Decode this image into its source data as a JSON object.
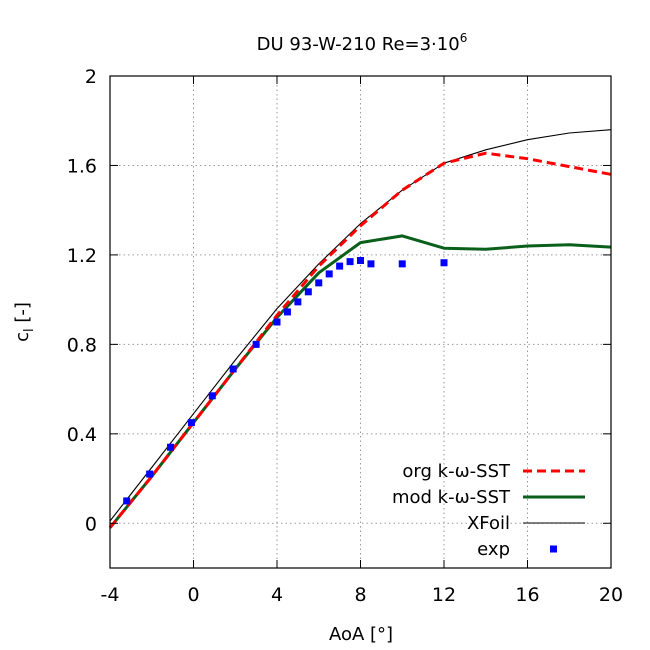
{
  "chart_data": {
    "type": "line",
    "title": "DU 93-W-210    Re=3·10",
    "title_superscript": "6",
    "xlabel": "AoA [°]",
    "ylabel_main": "c",
    "ylabel_sub": "l",
    "ylabel_suffix": " [-]",
    "xlim": [
      -4,
      20
    ],
    "ylim": [
      -0.2,
      2.0
    ],
    "xticks": [
      -4,
      0,
      4,
      8,
      12,
      16,
      20
    ],
    "yticks": [
      0,
      0.4,
      0.8,
      1.2,
      1.6,
      2
    ],
    "xtick_labels": [
      "-4",
      "0",
      "4",
      "8",
      "12",
      "16",
      "20"
    ],
    "ytick_labels": [
      "0",
      "0.4",
      "0.8",
      "1.2",
      "1.6",
      "2"
    ],
    "grid": true,
    "legend_position": "bottom-right",
    "series": [
      {
        "name": "org k-ω-SST",
        "style": "dashed",
        "color": "#ff0000",
        "x": [
          -4,
          -2,
          0,
          2,
          4,
          6,
          8,
          10,
          12,
          14,
          16,
          18,
          20
        ],
        "y": [
          -0.02,
          0.21,
          0.45,
          0.69,
          0.93,
          1.15,
          1.33,
          1.49,
          1.61,
          1.655,
          1.63,
          1.595,
          1.56
        ]
      },
      {
        "name": "mod k-ω-SST",
        "style": "solid-thick",
        "color": "#0a5f1a",
        "x": [
          -4,
          -2,
          0,
          2,
          4,
          6,
          8,
          10,
          12,
          14,
          16,
          18,
          20
        ],
        "y": [
          -0.02,
          0.21,
          0.45,
          0.69,
          0.92,
          1.12,
          1.255,
          1.285,
          1.23,
          1.225,
          1.24,
          1.245,
          1.235
        ]
      },
      {
        "name": "XFoil",
        "style": "solid-thin",
        "color": "#000000",
        "x": [
          -4,
          -2,
          0,
          2,
          4,
          6,
          8,
          10,
          12,
          14,
          16,
          18,
          20
        ],
        "y": [
          0.01,
          0.25,
          0.49,
          0.73,
          0.96,
          1.16,
          1.34,
          1.49,
          1.61,
          1.67,
          1.715,
          1.745,
          1.76
        ]
      },
      {
        "name": "exp",
        "style": "markers",
        "color": "#0000ff",
        "x": [
          -3.2,
          -2.1,
          -1.1,
          -0.1,
          0.9,
          1.9,
          3.0,
          4.0,
          4.5,
          5.0,
          5.5,
          6.0,
          6.5,
          7.0,
          7.5,
          8.0,
          8.5,
          10.0,
          12.0
        ],
        "y": [
          0.1,
          0.22,
          0.34,
          0.45,
          0.57,
          0.69,
          0.8,
          0.9,
          0.945,
          0.99,
          1.035,
          1.075,
          1.115,
          1.15,
          1.17,
          1.175,
          1.16,
          1.16,
          1.165
        ]
      }
    ]
  }
}
